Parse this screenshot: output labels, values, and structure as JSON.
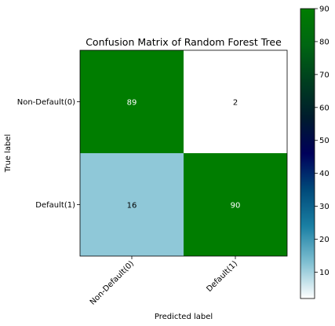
{
  "chart_data": {
    "type": "heatmap",
    "title": "Confusion Matrix of Random Forest Tree",
    "xlabel": "Predicted label",
    "ylabel": "True label",
    "x_categories": [
      "Non-Default(0)",
      "Default(1)"
    ],
    "y_categories": [
      "Non-Default(0)",
      "Default(1)"
    ],
    "values": [
      [
        89,
        2
      ],
      [
        16,
        90
      ]
    ],
    "colormap": "ocean_r",
    "colorbar": {
      "min": 2,
      "max": 90,
      "ticks": [
        10,
        20,
        30,
        40,
        50,
        60,
        70,
        80,
        90
      ]
    },
    "cell_colors": [
      [
        "#007d00",
        "#ffffff"
      ],
      [
        "#8fc8d8",
        "#007d00"
      ]
    ],
    "label_colors": [
      [
        "#ffffff",
        "#000000"
      ],
      [
        "#000000",
        "#ffffff"
      ]
    ],
    "colorbar_gradient": [
      "#ffffff",
      "#7fbfd1",
      "#1a7fa3",
      "#004a7a",
      "#00005a",
      "#001c2d",
      "#003f1f",
      "#006612",
      "#007d00"
    ]
  }
}
